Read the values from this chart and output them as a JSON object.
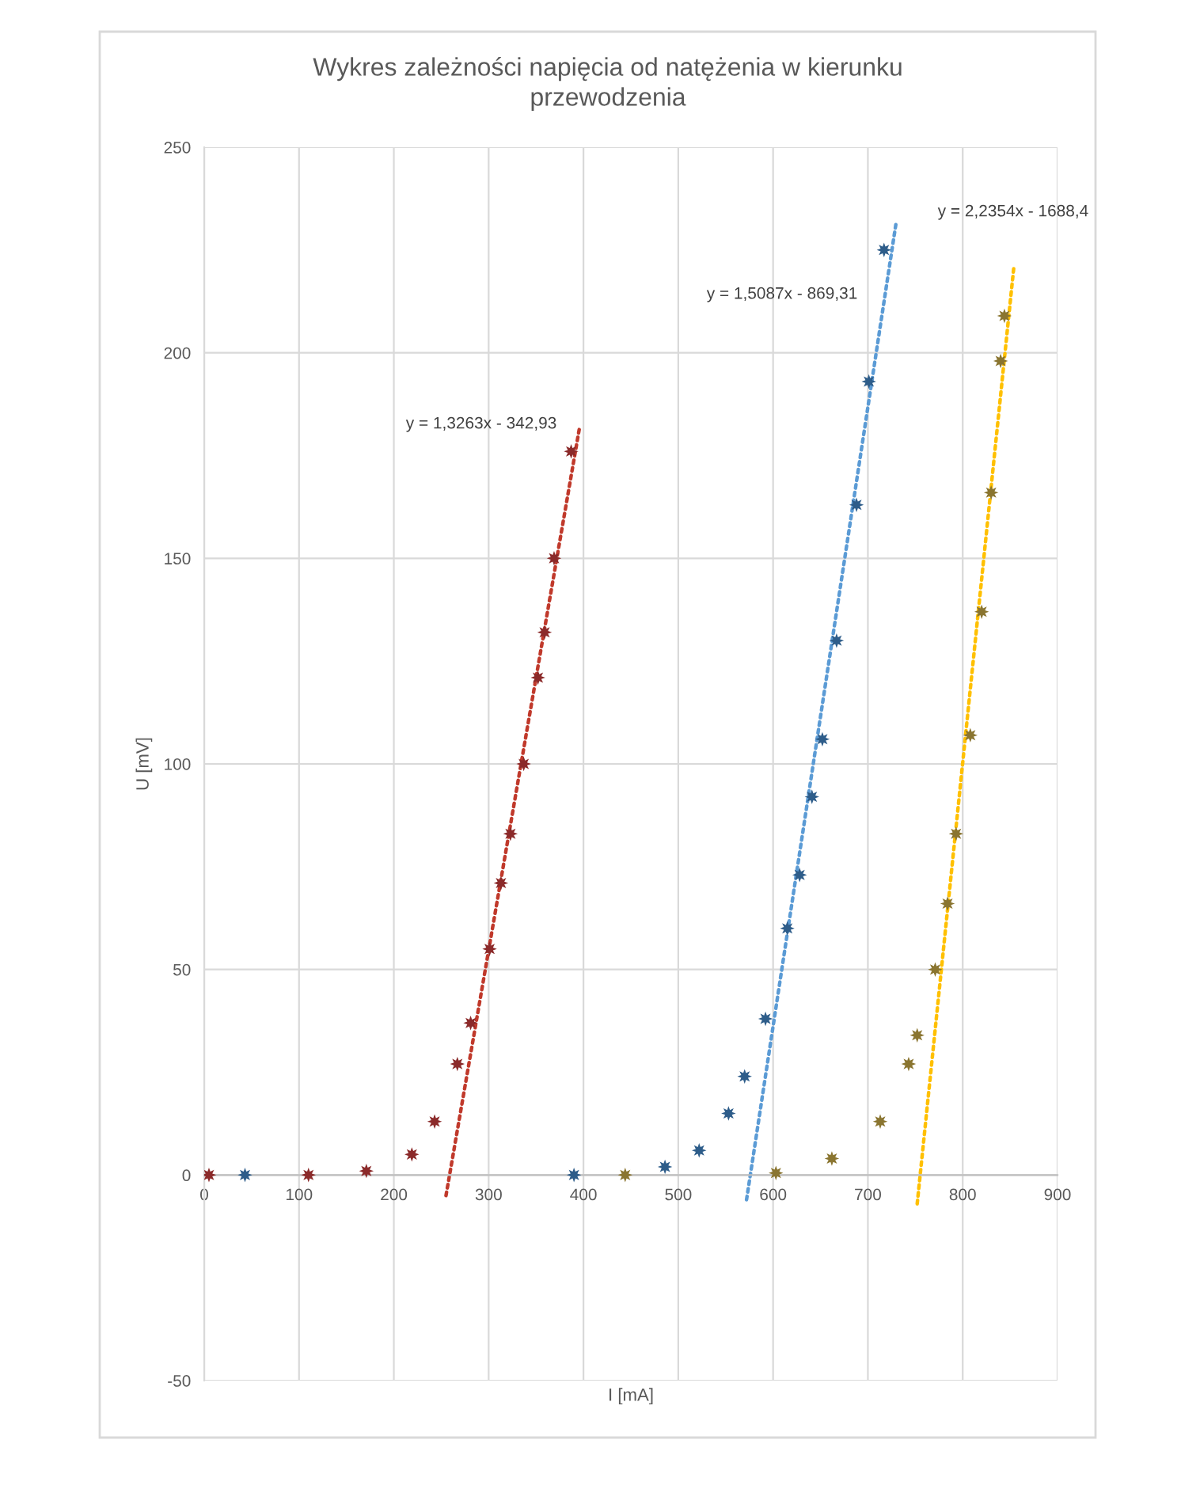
{
  "chart_data": {
    "type": "scatter",
    "title": "Wykres zależności napięcia od natężenia w kierunku przewodzenia",
    "xlabel": "I [mA]",
    "ylabel": "U [mV]",
    "xlim": [
      0,
      900
    ],
    "xticks": [
      0,
      100,
      200,
      300,
      400,
      500,
      600,
      700,
      800,
      900
    ],
    "ylim": [
      -50,
      250
    ],
    "yticks": [
      -50,
      0,
      50,
      100,
      150,
      200,
      250
    ],
    "grid": true,
    "marker": "star",
    "series": [
      {
        "color": "#8b2a2a",
        "x": [
          5,
          110,
          171,
          219,
          243,
          267,
          281,
          301,
          313,
          323,
          337,
          352,
          359,
          369,
          387
        ],
        "values": [
          0,
          0,
          1,
          5,
          13,
          27,
          37,
          55,
          71,
          83,
          100,
          121,
          132,
          150,
          176
        ]
      },
      {
        "color": "#2e5d8a",
        "x": [
          43,
          390,
          486,
          522,
          553,
          570,
          592,
          615,
          628,
          641,
          652,
          667,
          688,
          701,
          717
        ],
        "values": [
          0,
          0,
          2,
          6,
          15,
          24,
          38,
          60,
          73,
          92,
          106,
          130,
          163,
          193,
          225
        ]
      },
      {
        "color": "#8a7530",
        "x": [
          444,
          603,
          662,
          713,
          743,
          752,
          771,
          784,
          793,
          808,
          820,
          830,
          840,
          844
        ],
        "values": [
          0,
          0.5,
          4,
          13,
          27,
          34,
          50,
          66,
          83,
          107,
          137,
          166,
          198,
          209
        ]
      },
      {
        "type": "line",
        "color": "#c0392b",
        "line_style": "dotted",
        "marker": "none",
        "x": [
          255,
          396
        ],
        "values": [
          -5,
          182
        ]
      },
      {
        "type": "line",
        "color": "#5b9bd5",
        "line_style": "dotted",
        "marker": "none",
        "x": [
          572,
          730
        ],
        "values": [
          -6,
          232
        ]
      },
      {
        "type": "line",
        "color": "#ffc000",
        "line_style": "dotted",
        "marker": "none",
        "x": [
          752,
          854
        ],
        "values": [
          -7,
          221
        ]
      }
    ],
    "annotations": [
      "y = 1,3263x - 342,93",
      "y = 1,5087x - 869,31",
      "y = 2,2354x - 1688,4"
    ]
  }
}
